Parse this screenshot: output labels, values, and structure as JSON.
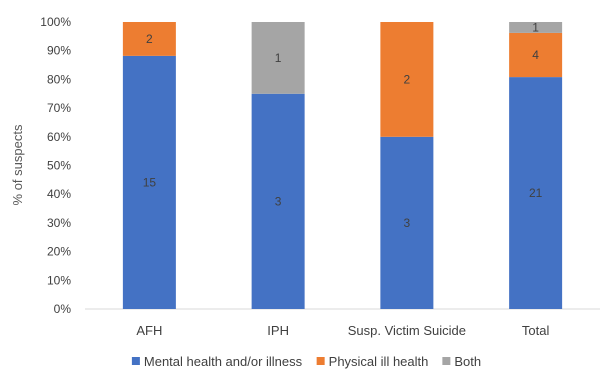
{
  "chart_data": {
    "type": "bar",
    "stacked": true,
    "categories": [
      "AFH",
      "IPH",
      "Susp. Victim Suicide",
      "Total"
    ],
    "series": [
      {
        "name": "Mental health and/or illness",
        "color": "#4472C4",
        "values": [
          88.2,
          75,
          60,
          80.8
        ],
        "counts": [
          "15",
          "3",
          "3",
          "21"
        ]
      },
      {
        "name": "Physical ill health",
        "color": "#ED7D31",
        "values": [
          11.8,
          0,
          40,
          15.4
        ],
        "counts": [
          "2",
          "",
          "2",
          "4"
        ]
      },
      {
        "name": "Both",
        "color": "#A5A5A5",
        "values": [
          0,
          25,
          0,
          3.8
        ],
        "counts": [
          "",
          "1",
          "",
          "1"
        ]
      }
    ],
    "title": "",
    "xlabel": "",
    "ylabel": "% of suspects",
    "ylim": [
      0,
      100
    ],
    "yticks": [
      "0%",
      "10%",
      "20%",
      "30%",
      "40%",
      "50%",
      "60%",
      "70%",
      "80%",
      "90%",
      "100%"
    ],
    "grid": false,
    "legend_position": "bottom"
  }
}
